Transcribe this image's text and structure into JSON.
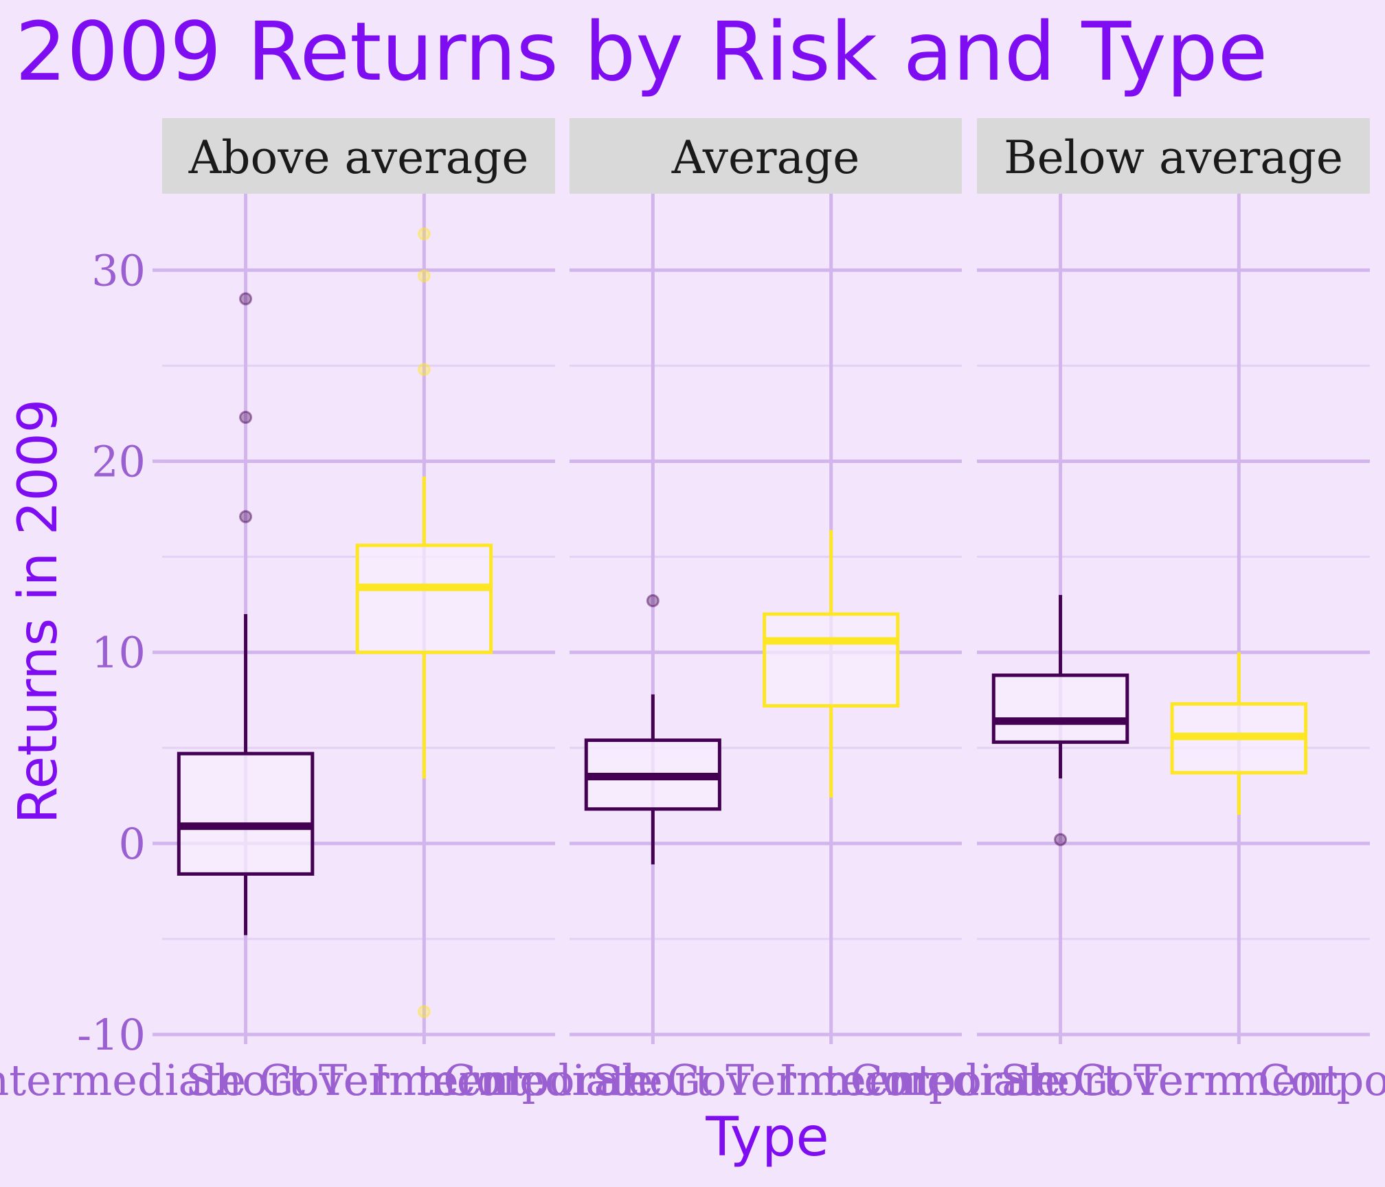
{
  "chart_data": {
    "type": "boxplot",
    "title": "2009 Returns by Risk and Type",
    "xlabel": "Type",
    "ylabel": "Returns in 2009",
    "ylim": [
      -10,
      34
    ],
    "yticks": [
      "-10",
      "0",
      "10",
      "20",
      "30"
    ],
    "categories": [
      "Intermediate Government",
      "Short Term Corporate"
    ],
    "facets": [
      {
        "label": "Above average",
        "boxes": [
          {
            "category": "Intermediate Government",
            "whisker_low": -4.8,
            "q1": -1.6,
            "median": 0.9,
            "q3": 4.7,
            "whisker_high": 12.0,
            "outliers": [
              17.1,
              22.3,
              28.5
            ]
          },
          {
            "category": "Short Term Corporate",
            "whisker_low": 3.4,
            "q1": 10.0,
            "median": 13.4,
            "q3": 15.6,
            "whisker_high": 19.2,
            "outliers": [
              24.8,
              29.7,
              31.9,
              -8.8
            ]
          }
        ]
      },
      {
        "label": "Average",
        "boxes": [
          {
            "category": "Intermediate Government",
            "whisker_low": -1.1,
            "q1": 1.8,
            "median": 3.5,
            "q3": 5.4,
            "whisker_high": 7.8,
            "outliers": [
              12.7
            ]
          },
          {
            "category": "Short Term Corporate",
            "whisker_low": 2.4,
            "q1": 7.2,
            "median": 10.6,
            "q3": 12.0,
            "whisker_high": 16.4,
            "outliers": []
          }
        ]
      },
      {
        "label": "Below average",
        "boxes": [
          {
            "category": "Intermediate Government",
            "whisker_low": 3.4,
            "q1": 5.3,
            "median": 6.4,
            "q3": 8.8,
            "whisker_high": 13.0,
            "outliers": [
              0.2
            ]
          },
          {
            "category": "Short Term Corporate",
            "whisker_low": 1.5,
            "q1": 3.7,
            "median": 5.6,
            "q3": 7.3,
            "whisker_high": 10.0,
            "outliers": []
          }
        ]
      }
    ],
    "series_colors": {
      "Intermediate Government": "#440154",
      "Short Term Corporate": "#fde725"
    },
    "grid": true,
    "legend": "none"
  },
  "colors": {
    "background": "#f3e5fc",
    "title": "#7f0df2",
    "grid_major": "#d2b5ec",
    "grid_minor": "#e4d1f5",
    "strip_fill": "#d9d9d9",
    "tick_text": "#9a5fd0",
    "box_fill": "#f7eefd"
  }
}
